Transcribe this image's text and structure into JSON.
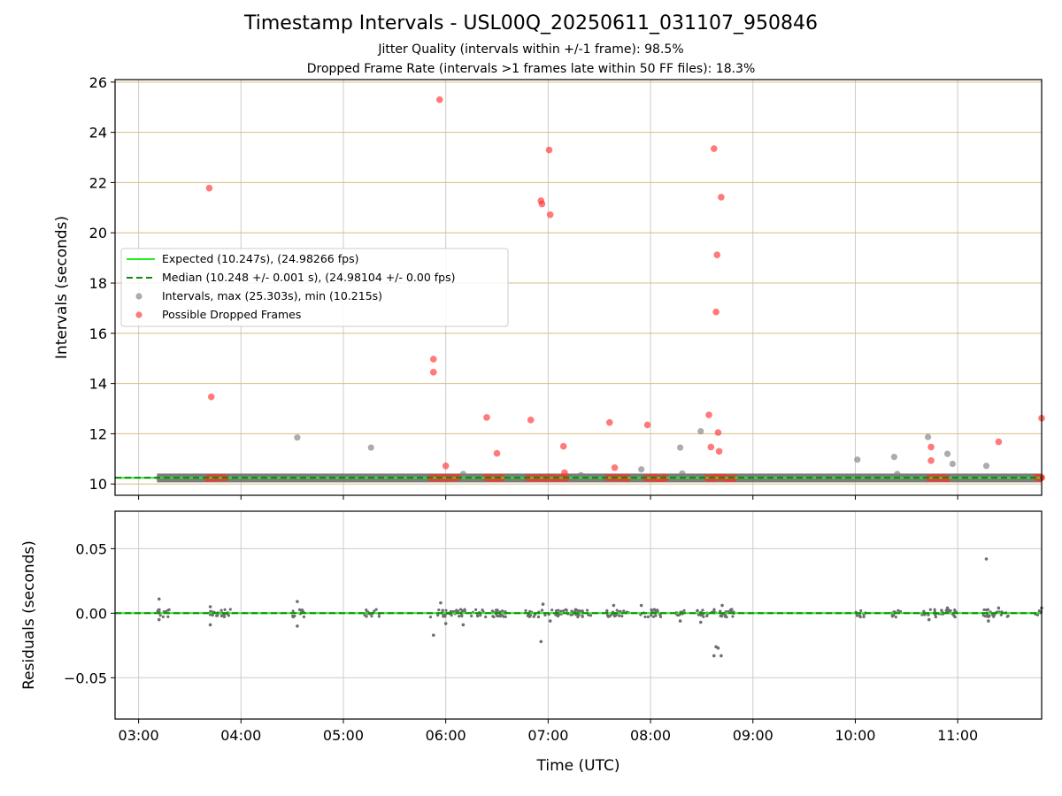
{
  "title": "Timestamp Intervals - USL00Q_20250611_031107_950846",
  "subtitle1": "Jitter Quality (intervals within +/-1 frame): 98.5%",
  "subtitle2": "Dropped Frame Rate (intervals >1 frames late within 50 FF files): 18.3%",
  "colors": {
    "expected": "#22ee22",
    "median": "#118811",
    "intervals": "#808080",
    "dropped": "#ff3333",
    "hgrid": "#d4bf80",
    "vgrid": "#cccccc"
  },
  "chart_data": [
    {
      "type": "scatter",
      "panel": "intervals",
      "ylabel": "Intervals (seconds)",
      "xlabel": "",
      "xlim": [
        2.77,
        11.82
      ],
      "ylim": [
        9.55,
        26.1
      ],
      "yticks": [
        10,
        12,
        14,
        16,
        18,
        20,
        22,
        24,
        26
      ],
      "ytick_labels": [
        "10",
        "12",
        "14",
        "16",
        "18",
        "20",
        "22",
        "24",
        "26"
      ],
      "hgrid": true,
      "legend": {
        "position": "center-left",
        "entries": [
          {
            "label": "Expected (10.247s), (24.98266 fps)",
            "style": "solid-line",
            "color": "#22ee22"
          },
          {
            "label": "Median (10.248 +/- 0.001 s), (24.98104 +/- 0.00 fps)",
            "style": "dashed-line",
            "color": "#118811"
          },
          {
            "label": "Intervals, max (25.303s), min (10.215s)",
            "style": "marker",
            "color": "#808080"
          },
          {
            "label": "Possible Dropped Frames",
            "style": "marker",
            "color": "#ff3333"
          }
        ]
      },
      "expected": 10.247,
      "median": 10.248,
      "baseline_band": {
        "x": [
          3.18,
          11.82
        ],
        "y": 10.24
      },
      "intervals_other": [
        [
          3.2,
          10.24
        ],
        [
          4.55,
          11.85
        ],
        [
          5.27,
          11.45
        ],
        [
          6.17,
          10.4
        ],
        [
          7.32,
          10.35
        ],
        [
          7.91,
          10.58
        ],
        [
          8.29,
          11.45
        ],
        [
          8.31,
          10.42
        ],
        [
          8.49,
          12.1
        ],
        [
          10.02,
          10.97
        ],
        [
          10.38,
          11.08
        ],
        [
          10.41,
          10.4
        ],
        [
          10.71,
          11.87
        ],
        [
          10.9,
          11.2
        ],
        [
          10.95,
          10.8
        ],
        [
          11.28,
          10.72
        ]
      ],
      "dropped_frames": [
        [
          3.69,
          21.78
        ],
        [
          3.71,
          13.47
        ],
        [
          5.88,
          14.97
        ],
        [
          5.88,
          14.45
        ],
        [
          5.94,
          25.3
        ],
        [
          6.0,
          10.72
        ],
        [
          6.4,
          12.65
        ],
        [
          6.5,
          11.22
        ],
        [
          6.83,
          12.55
        ],
        [
          6.93,
          21.28
        ],
        [
          6.94,
          21.15
        ],
        [
          7.01,
          23.3
        ],
        [
          7.02,
          20.72
        ],
        [
          7.15,
          11.5
        ],
        [
          7.16,
          10.45
        ],
        [
          7.6,
          12.45
        ],
        [
          7.65,
          10.65
        ],
        [
          7.97,
          12.35
        ],
        [
          8.57,
          12.75
        ],
        [
          8.59,
          11.47
        ],
        [
          8.62,
          23.35
        ],
        [
          8.64,
          16.85
        ],
        [
          8.65,
          19.12
        ],
        [
          8.66,
          12.05
        ],
        [
          8.67,
          11.3
        ],
        [
          8.69,
          21.42
        ],
        [
          10.74,
          11.47
        ],
        [
          10.74,
          10.93
        ],
        [
          11.4,
          11.68
        ],
        [
          11.82,
          12.62
        ]
      ],
      "dropped_clusters": [
        [
          3.67,
          3.85
        ],
        [
          5.85,
          6.12
        ],
        [
          6.39,
          6.55
        ],
        [
          6.8,
          7.18
        ],
        [
          7.58,
          7.78
        ],
        [
          7.95,
          8.15
        ],
        [
          8.55,
          8.82
        ],
        [
          10.72,
          10.9
        ],
        [
          11.77,
          11.82
        ]
      ]
    },
    {
      "type": "scatter",
      "panel": "residuals",
      "ylabel": "Residuals (seconds)",
      "xlabel": "Time (UTC)",
      "xlim": [
        2.77,
        11.82
      ],
      "ylim": [
        -0.082,
        0.079
      ],
      "yticks": [
        0.05,
        0.0,
        -0.05
      ],
      "ytick_labels": [
        "0.05",
        "0.00",
        "−0.05"
      ],
      "xticks": [
        3,
        4,
        5,
        6,
        7,
        8,
        9,
        10,
        11
      ],
      "xtick_labels": [
        "03:00",
        "04:00",
        "05:00",
        "06:00",
        "07:00",
        "08:00",
        "09:00",
        "10:00",
        "11:00"
      ],
      "hgrid": true,
      "median_residual": 0.0,
      "outliers": [
        [
          3.2,
          0.011
        ],
        [
          3.2,
          -0.005
        ],
        [
          3.7,
          0.005
        ],
        [
          3.7,
          -0.009
        ],
        [
          4.55,
          0.009
        ],
        [
          4.55,
          -0.01
        ],
        [
          5.88,
          -0.017
        ],
        [
          5.95,
          0.008
        ],
        [
          6.0,
          -0.008
        ],
        [
          6.17,
          -0.009
        ],
        [
          6.93,
          -0.022
        ],
        [
          6.95,
          0.007
        ],
        [
          7.02,
          -0.006
        ],
        [
          7.64,
          0.006
        ],
        [
          7.91,
          0.006
        ],
        [
          8.29,
          -0.006
        ],
        [
          8.49,
          -0.007
        ],
        [
          8.62,
          -0.033
        ],
        [
          8.64,
          -0.026
        ],
        [
          8.66,
          -0.027
        ],
        [
          8.69,
          -0.033
        ],
        [
          8.7,
          0.006
        ],
        [
          10.72,
          -0.005
        ],
        [
          10.9,
          0.004
        ],
        [
          11.28,
          0.042
        ],
        [
          11.3,
          -0.006
        ],
        [
          11.4,
          0.004
        ],
        [
          11.82,
          0.004
        ]
      ],
      "clusters": [
        [
          3.18,
          3.3
        ],
        [
          3.65,
          3.9
        ],
        [
          4.5,
          4.62
        ],
        [
          5.2,
          5.35
        ],
        [
          5.85,
          6.2
        ],
        [
          6.25,
          6.6
        ],
        [
          6.78,
          7.42
        ],
        [
          7.55,
          7.8
        ],
        [
          7.88,
          8.1
        ],
        [
          8.25,
          8.35
        ],
        [
          8.45,
          8.82
        ],
        [
          10.0,
          10.1
        ],
        [
          10.35,
          10.45
        ],
        [
          10.65,
          11.0
        ],
        [
          11.25,
          11.5
        ],
        [
          11.75,
          11.82
        ]
      ]
    }
  ]
}
